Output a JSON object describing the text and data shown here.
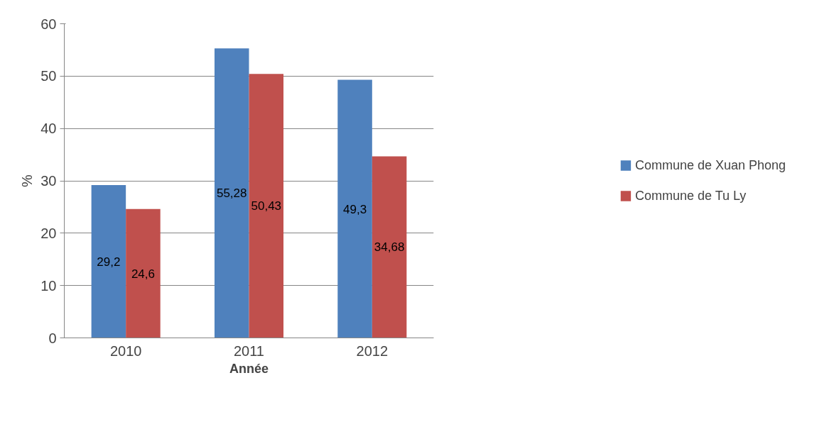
{
  "chart_data": {
    "type": "bar",
    "xlabel": "Année",
    "ylabel": "%",
    "categories": [
      "2010",
      "2011",
      "2012"
    ],
    "series": [
      {
        "name": "Commune de Xuan Phong",
        "color": "#4f81bd",
        "values": [
          29.2,
          55.28,
          49.3
        ],
        "value_labels": [
          "29,2",
          "55,28",
          "49,3"
        ]
      },
      {
        "name": "Commune de Tu Ly",
        "color": "#c0504d",
        "values": [
          24.6,
          50.43,
          34.68
        ],
        "value_labels": [
          "24,6",
          "50,43",
          "34,68"
        ]
      }
    ],
    "ylim": [
      0,
      60
    ],
    "yticks": [
      0,
      10,
      20,
      30,
      40,
      50,
      60
    ],
    "grid": "y",
    "legend": "right"
  }
}
